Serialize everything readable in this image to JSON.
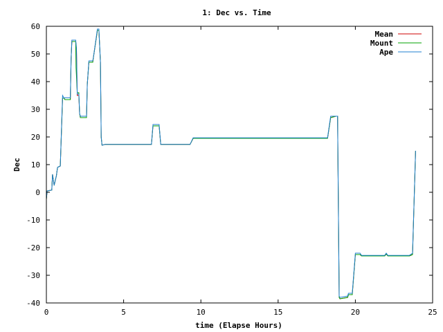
{
  "chart_data": {
    "type": "line",
    "title": "1: Dec vs. Time",
    "xlabel": "time (Elapse Hours)",
    "ylabel": "Dec",
    "xlim": [
      0,
      25
    ],
    "ylim": [
      -40,
      60
    ],
    "xticks": [
      0,
      5,
      10,
      15,
      20,
      25
    ],
    "yticks": [
      -40,
      -30,
      -20,
      -10,
      0,
      10,
      20,
      30,
      40,
      50,
      60
    ],
    "grid": false,
    "legend_position": "top-right",
    "series": [
      {
        "name": "Mean",
        "color": "#cc0000",
        "points": [
          [
            0,
            -2.5
          ],
          [
            0.05,
            0.5
          ],
          [
            0.35,
            0.8
          ],
          [
            0.4,
            6.5
          ],
          [
            0.5,
            2.5
          ],
          [
            0.65,
            6
          ],
          [
            0.72,
            9
          ],
          [
            0.9,
            9.5
          ],
          [
            1.05,
            34
          ],
          [
            1.15,
            34
          ],
          [
            1.2,
            33.5
          ],
          [
            1.55,
            33.5
          ],
          [
            1.6,
            48
          ],
          [
            1.65,
            54.5
          ],
          [
            1.9,
            54.5
          ],
          [
            1.95,
            51.5
          ],
          [
            2.0,
            35
          ],
          [
            2.1,
            35
          ],
          [
            2.15,
            28.5
          ],
          [
            2.2,
            27
          ],
          [
            2.6,
            27
          ],
          [
            2.65,
            39
          ],
          [
            2.75,
            47
          ],
          [
            3.0,
            47
          ],
          [
            3.05,
            49
          ],
          [
            3.3,
            58.5
          ],
          [
            3.4,
            58.5
          ],
          [
            3.5,
            47
          ],
          [
            3.55,
            20
          ],
          [
            3.6,
            17
          ],
          [
            3.8,
            17.3
          ],
          [
            6.8,
            17.3
          ],
          [
            6.9,
            24
          ],
          [
            7.3,
            24
          ],
          [
            7.4,
            17.3
          ],
          [
            9.3,
            17.3
          ],
          [
            9.5,
            19.5
          ],
          [
            18.2,
            19.5
          ],
          [
            18.4,
            27
          ],
          [
            18.75,
            27.5
          ],
          [
            18.85,
            27.5
          ],
          [
            18.95,
            -38
          ],
          [
            19.0,
            -38.5
          ],
          [
            19.5,
            -38
          ],
          [
            19.55,
            -37
          ],
          [
            19.8,
            -37
          ],
          [
            20.0,
            -22.5
          ],
          [
            20.3,
            -22.5
          ],
          [
            20.4,
            -23
          ],
          [
            21.9,
            -23
          ],
          [
            22.0,
            -22.3
          ],
          [
            22.1,
            -23
          ],
          [
            23.5,
            -23
          ],
          [
            23.7,
            -22.5
          ],
          [
            23.9,
            15
          ]
        ]
      },
      {
        "name": "Mount",
        "color": "#00a000",
        "points": [
          [
            0,
            -2.5
          ],
          [
            0.05,
            0.5
          ],
          [
            0.35,
            0.8
          ],
          [
            0.4,
            6.5
          ],
          [
            0.5,
            2.5
          ],
          [
            0.65,
            6
          ],
          [
            0.72,
            9
          ],
          [
            0.9,
            9.5
          ],
          [
            1.05,
            34
          ],
          [
            1.15,
            34
          ],
          [
            1.2,
            33.5
          ],
          [
            1.55,
            33.5
          ],
          [
            1.6,
            48
          ],
          [
            1.65,
            54.5
          ],
          [
            1.9,
            54.5
          ],
          [
            1.92,
            45
          ],
          [
            2.0,
            36
          ],
          [
            2.1,
            36
          ],
          [
            2.15,
            28.5
          ],
          [
            2.2,
            27
          ],
          [
            2.6,
            27
          ],
          [
            2.65,
            39
          ],
          [
            2.75,
            47
          ],
          [
            3.0,
            47
          ],
          [
            3.05,
            49
          ],
          [
            3.3,
            58.5
          ],
          [
            3.4,
            58.5
          ],
          [
            3.5,
            47
          ],
          [
            3.55,
            20
          ],
          [
            3.6,
            17
          ],
          [
            3.8,
            17.3
          ],
          [
            6.8,
            17.3
          ],
          [
            6.9,
            24
          ],
          [
            7.3,
            24
          ],
          [
            7.4,
            17.3
          ],
          [
            9.3,
            17.3
          ],
          [
            9.5,
            19.5
          ],
          [
            18.2,
            19.5
          ],
          [
            18.4,
            27
          ],
          [
            18.75,
            27.5
          ],
          [
            18.85,
            27.5
          ],
          [
            18.95,
            -38
          ],
          [
            19.0,
            -38.5
          ],
          [
            19.5,
            -38
          ],
          [
            19.55,
            -37
          ],
          [
            19.8,
            -37
          ],
          [
            20.0,
            -22.5
          ],
          [
            20.3,
            -22.5
          ],
          [
            20.4,
            -23
          ],
          [
            21.9,
            -23
          ],
          [
            22.0,
            -22.3
          ],
          [
            22.1,
            -23
          ],
          [
            23.5,
            -23
          ],
          [
            23.7,
            -22.5
          ],
          [
            23.9,
            15
          ]
        ]
      },
      {
        "name": "Ape",
        "color": "#1f7fd0",
        "points": [
          [
            0,
            -2.5
          ],
          [
            0.05,
            0.5
          ],
          [
            0.35,
            0.8
          ],
          [
            0.4,
            6.5
          ],
          [
            0.5,
            2.5
          ],
          [
            0.65,
            6
          ],
          [
            0.72,
            9
          ],
          [
            0.9,
            9.5
          ],
          [
            1.05,
            35
          ],
          [
            1.15,
            34
          ],
          [
            1.2,
            34.2
          ],
          [
            1.55,
            34.2
          ],
          [
            1.6,
            48
          ],
          [
            1.65,
            55
          ],
          [
            1.9,
            55
          ],
          [
            1.95,
            52
          ],
          [
            2.0,
            35.5
          ],
          [
            2.1,
            35.5
          ],
          [
            2.15,
            28.5
          ],
          [
            2.2,
            27.5
          ],
          [
            2.6,
            27.5
          ],
          [
            2.65,
            39
          ],
          [
            2.75,
            47.5
          ],
          [
            3.0,
            47.5
          ],
          [
            3.05,
            49
          ],
          [
            3.3,
            59
          ],
          [
            3.4,
            59
          ],
          [
            3.5,
            47
          ],
          [
            3.55,
            20
          ],
          [
            3.6,
            17
          ],
          [
            3.8,
            17.3
          ],
          [
            6.8,
            17.3
          ],
          [
            6.9,
            24.5
          ],
          [
            7.3,
            24.5
          ],
          [
            7.4,
            17.3
          ],
          [
            9.3,
            17.3
          ],
          [
            9.5,
            19.7
          ],
          [
            18.2,
            19.7
          ],
          [
            18.4,
            27.5
          ],
          [
            18.75,
            27.5
          ],
          [
            18.85,
            27.5
          ],
          [
            18.95,
            -37.5
          ],
          [
            19.0,
            -38
          ],
          [
            19.5,
            -37.5
          ],
          [
            19.55,
            -36.5
          ],
          [
            19.8,
            -36.5
          ],
          [
            20.0,
            -22
          ],
          [
            20.3,
            -22
          ],
          [
            20.4,
            -22.8
          ],
          [
            21.9,
            -22.8
          ],
          [
            22.0,
            -22
          ],
          [
            22.1,
            -22.8
          ],
          [
            23.5,
            -22.8
          ],
          [
            23.7,
            -22
          ],
          [
            23.9,
            15
          ]
        ]
      }
    ]
  }
}
